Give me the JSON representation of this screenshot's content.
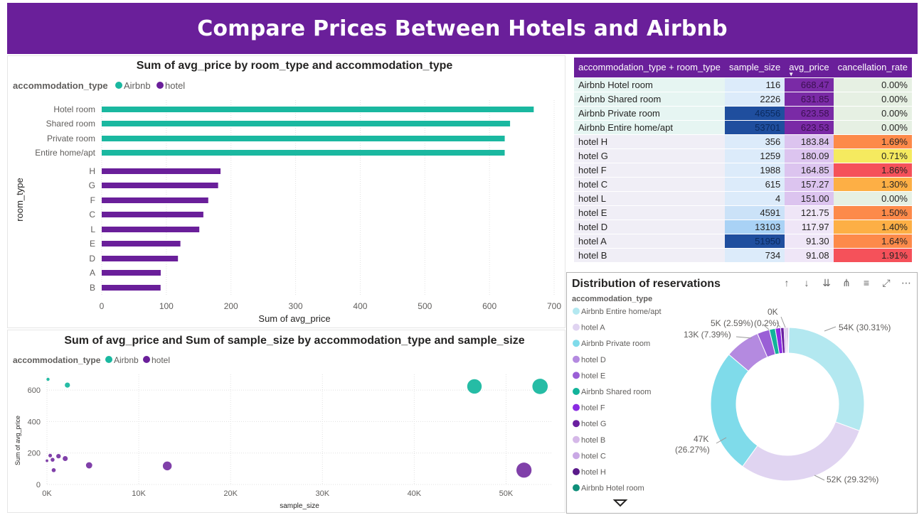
{
  "title": "Compare Prices Between Hotels and Airbnb",
  "colors": {
    "airbnb": "#1ab8a0",
    "hotel": "#6a1f9a",
    "header": "#6a1f9a"
  },
  "bar_chart": {
    "title": "Sum of avg_price by room_type and accommodation_type",
    "legend_title": "accommodation_type",
    "legend": [
      "Airbnb",
      "hotel"
    ],
    "xlabel": "Sum of avg_price",
    "ylabel": "room_type",
    "ticks": [
      "0",
      "100",
      "200",
      "300",
      "400",
      "500",
      "600",
      "700"
    ]
  },
  "scatter_chart": {
    "title": "Sum of avg_price and Sum of sample_size by accommodation_type and sample_size",
    "legend_title": "accommodation_type",
    "legend": [
      "Airbnb",
      "hotel"
    ],
    "xlabel": "sample_size",
    "ylabel": "Sum of avg_price",
    "xticks": [
      "0K",
      "10K",
      "20K",
      "30K",
      "40K",
      "50K"
    ],
    "yticks": [
      "0",
      "200",
      "400",
      "600"
    ]
  },
  "table": {
    "columns": [
      "accommodation_type + room_type",
      "sample_size",
      "avg_price",
      "cancellation_rate"
    ],
    "rows": [
      {
        "name": "Airbnb Hotel room",
        "sample_size": "116",
        "avg_price": "668.47",
        "cancellation_rate": "0.00%"
      },
      {
        "name": "Airbnb Shared room",
        "sample_size": "2226",
        "avg_price": "631.85",
        "cancellation_rate": "0.00%"
      },
      {
        "name": "Airbnb Private room",
        "sample_size": "46556",
        "avg_price": "623.58",
        "cancellation_rate": "0.00%"
      },
      {
        "name": "Airbnb Entire home/apt",
        "sample_size": "53701",
        "avg_price": "623.53",
        "cancellation_rate": "0.00%"
      },
      {
        "name": "hotel H",
        "sample_size": "356",
        "avg_price": "183.84",
        "cancellation_rate": "1.69%"
      },
      {
        "name": "hotel G",
        "sample_size": "1259",
        "avg_price": "180.09",
        "cancellation_rate": "0.71%"
      },
      {
        "name": "hotel F",
        "sample_size": "1988",
        "avg_price": "164.85",
        "cancellation_rate": "1.86%"
      },
      {
        "name": "hotel C",
        "sample_size": "615",
        "avg_price": "157.27",
        "cancellation_rate": "1.30%"
      },
      {
        "name": "hotel L",
        "sample_size": "4",
        "avg_price": "151.00",
        "cancellation_rate": "0.00%"
      },
      {
        "name": "hotel E",
        "sample_size": "4591",
        "avg_price": "121.75",
        "cancellation_rate": "1.50%"
      },
      {
        "name": "hotel D",
        "sample_size": "13103",
        "avg_price": "117.97",
        "cancellation_rate": "1.40%"
      },
      {
        "name": "hotel A",
        "sample_size": "51950",
        "avg_price": "91.30",
        "cancellation_rate": "1.64%"
      },
      {
        "name": "hotel B",
        "sample_size": "734",
        "avg_price": "91.08",
        "cancellation_rate": "1.91%"
      }
    ],
    "sorted_column": "avg_price"
  },
  "donut_chart": {
    "title": "Distribution of reservations",
    "legend_title": "accommodation_type",
    "legend": [
      {
        "label": "Airbnb Entire home/apt",
        "color": "#b3e8f0"
      },
      {
        "label": "hotel A",
        "color": "#e0d4f1"
      },
      {
        "label": "Airbnb Private room",
        "color": "#7fdbea"
      },
      {
        "label": "hotel D",
        "color": "#b48ae0"
      },
      {
        "label": "hotel E",
        "color": "#9a5fd6"
      },
      {
        "label": "Airbnb Shared room",
        "color": "#12b39a"
      },
      {
        "label": "hotel F",
        "color": "#8a2be2"
      },
      {
        "label": "hotel G",
        "color": "#6a1fa0"
      },
      {
        "label": "hotel B",
        "color": "#d5b8e8"
      },
      {
        "label": "hotel C",
        "color": "#c9a8e5"
      },
      {
        "label": "hotel H",
        "color": "#5a1a8a"
      },
      {
        "label": "Airbnb Hotel room",
        "color": "#0f8f7a"
      }
    ],
    "labels": {
      "a": "54K (30.31%)",
      "b": "52K (29.32%)",
      "c1": "47K",
      "c2": "(26.27%)",
      "d": "13K (7.39%)",
      "e": "5K (2.59%)",
      "f": "(0.2%)",
      "g": "0K"
    }
  },
  "chart_data": [
    {
      "type": "bar",
      "title": "Sum of avg_price by room_type and accommodation_type",
      "xlabel": "Sum of avg_price",
      "ylabel": "room_type",
      "xlim": [
        0,
        700
      ],
      "categories": [
        "Hotel room",
        "Shared room",
        "Private room",
        "Entire home/apt",
        "H",
        "G",
        "F",
        "C",
        "L",
        "E",
        "D",
        "A",
        "B"
      ],
      "series": [
        {
          "name": "Airbnb",
          "values": [
            668.47,
            631.85,
            623.58,
            623.53,
            null,
            null,
            null,
            null,
            null,
            null,
            null,
            null,
            null
          ]
        },
        {
          "name": "hotel",
          "values": [
            null,
            null,
            null,
            null,
            183.84,
            180.09,
            164.85,
            157.27,
            151.0,
            121.75,
            117.97,
            91.3,
            91.08
          ]
        }
      ],
      "legend": "top-left"
    },
    {
      "type": "scatter",
      "title": "Sum of avg_price and Sum of sample_size by accommodation_type and sample_size",
      "xlabel": "sample_size",
      "ylabel": "Sum of avg_price",
      "xlim": [
        0,
        55000
      ],
      "ylim": [
        0,
        700
      ],
      "series": [
        {
          "name": "Airbnb",
          "points": [
            [
              116,
              668.47
            ],
            [
              2226,
              631.85
            ],
            [
              46556,
              623.58
            ],
            [
              53701,
              623.53
            ]
          ]
        },
        {
          "name": "hotel",
          "points": [
            [
              356,
              183.84
            ],
            [
              1259,
              180.09
            ],
            [
              1988,
              164.85
            ],
            [
              615,
              157.27
            ],
            [
              4,
              151.0
            ],
            [
              4591,
              121.75
            ],
            [
              13103,
              117.97
            ],
            [
              51950,
              91.3
            ],
            [
              734,
              91.08
            ]
          ]
        }
      ],
      "legend": "top-left"
    },
    {
      "type": "pie",
      "title": "Distribution of reservations",
      "categories": [
        "Airbnb Entire home/apt",
        "hotel A",
        "Airbnb Private room",
        "hotel D",
        "hotel E",
        "Airbnb Shared room",
        "hotel F",
        "hotel G",
        "hotel B",
        "hotel C",
        "hotel H",
        "Airbnb Hotel room",
        "hotel L"
      ],
      "values": [
        53701,
        51950,
        46556,
        13103,
        4591,
        2226,
        1988,
        1259,
        734,
        615,
        356,
        116,
        4
      ]
    }
  ]
}
